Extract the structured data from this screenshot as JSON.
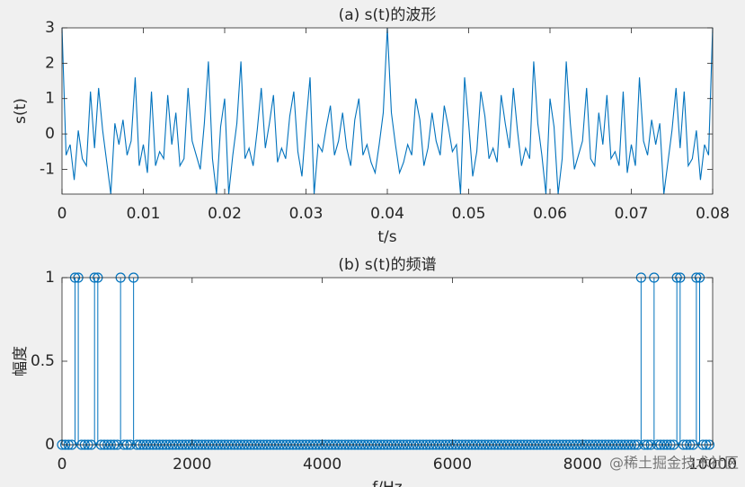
{
  "chart_data": [
    {
      "type": "line",
      "title": "(a) s(t)的波形",
      "x_label": "t/s",
      "y_label": "s(t)",
      "color": "#0072bd",
      "x": [
        0,
        0.0005,
        0.001,
        0.0015,
        0.002,
        0.0025,
        0.003,
        0.0035,
        0.004,
        0.0045,
        0.005,
        0.0055,
        0.006,
        0.0065,
        0.007,
        0.0075,
        0.008,
        0.0085,
        0.009,
        0.0095,
        0.01,
        0.0105,
        0.011,
        0.0115,
        0.012,
        0.0125,
        0.013,
        0.0135,
        0.014,
        0.0145,
        0.015,
        0.0155,
        0.016,
        0.0165,
        0.017,
        0.0175,
        0.018,
        0.0185,
        0.019,
        0.0195,
        0.02,
        0.0205,
        0.021,
        0.0215,
        0.022,
        0.0225,
        0.023,
        0.0235,
        0.024,
        0.0245,
        0.025,
        0.0255,
        0.026,
        0.0265,
        0.027,
        0.0275,
        0.028,
        0.0285,
        0.029,
        0.0295,
        0.03,
        0.0305,
        0.031,
        0.0315,
        0.032,
        0.0325,
        0.033,
        0.0335,
        0.034,
        0.0345,
        0.035,
        0.0355,
        0.036,
        0.0365,
        0.037,
        0.0375,
        0.038,
        0.0385,
        0.039,
        0.0395,
        0.04,
        0.0405,
        0.041,
        0.0415,
        0.042,
        0.0425,
        0.043,
        0.0435,
        0.044,
        0.0445,
        0.045,
        0.0455,
        0.046,
        0.0465,
        0.047,
        0.0475,
        0.048,
        0.0485,
        0.049,
        0.0495,
        0.05,
        0.0505,
        0.051,
        0.0515,
        0.052,
        0.0525,
        0.053,
        0.0535,
        0.054,
        0.0545,
        0.055,
        0.0555,
        0.056,
        0.0565,
        0.057,
        0.0575,
        0.058,
        0.0585,
        0.059,
        0.0595,
        0.06,
        0.0605,
        0.061,
        0.0615,
        0.062,
        0.0625,
        0.063,
        0.0635,
        0.064,
        0.0645,
        0.065,
        0.0655,
        0.066,
        0.0665,
        0.067,
        0.0675,
        0.068,
        0.0685,
        0.069,
        0.0695,
        0.07,
        0.0705,
        0.071,
        0.0715,
        0.072,
        0.0725,
        0.073,
        0.0735,
        0.074,
        0.0745,
        0.075,
        0.0755,
        0.076,
        0.0765,
        0.077,
        0.0775,
        0.078,
        0.0785,
        0.079,
        0.0795,
        0.08
      ],
      "values": [
        3,
        -0.6,
        -0.3,
        -1.3,
        0.1,
        -0.7,
        -0.9,
        1.2,
        -0.4,
        1.3,
        0.1,
        -0.8,
        -1.7,
        0.3,
        -0.3,
        0.4,
        -0.6,
        -0.2,
        1.6,
        -0.9,
        -0.3,
        -1.1,
        1.2,
        -0.9,
        -0.5,
        -0.7,
        1.1,
        -0.3,
        0.6,
        -0.9,
        -0.7,
        1.3,
        -0.2,
        -0.6,
        -1.0,
        0.3,
        2.05,
        -0.7,
        -1.7,
        0.2,
        1.0,
        -1.7,
        -0.6,
        0.3,
        2.05,
        -0.7,
        -0.4,
        -0.9,
        0.1,
        1.3,
        -0.4,
        0.3,
        1.1,
        -0.8,
        -0.4,
        -0.7,
        0.5,
        1.2,
        -0.5,
        -1.2,
        0.3,
        1.6,
        -1.7,
        -0.3,
        -0.5,
        0.2,
        0.8,
        -0.6,
        -0.2,
        0.6,
        -0.4,
        -0.9,
        0.4,
        1.0,
        -0.6,
        -0.3,
        -0.8,
        -1.1,
        -0.3,
        0.6,
        3.0,
        0.6,
        -0.3,
        -1.1,
        -0.8,
        -0.3,
        -0.6,
        1.0,
        0.4,
        -0.9,
        -0.4,
        0.6,
        -0.2,
        -0.6,
        0.8,
        0.2,
        -0.5,
        -0.3,
        -1.7,
        1.6,
        0.3,
        -1.2,
        -0.5,
        1.2,
        0.5,
        -0.7,
        -0.4,
        -0.8,
        1.1,
        0.3,
        -0.4,
        1.3,
        0.1,
        -0.9,
        -0.4,
        -0.7,
        2.05,
        0.3,
        -0.6,
        -1.7,
        1.0,
        0.2,
        -1.7,
        -0.7,
        2.05,
        0.3,
        -1.0,
        -0.6,
        -0.2,
        1.3,
        -0.7,
        -0.9,
        0.6,
        -0.3,
        1.1,
        -0.7,
        -0.5,
        -0.9,
        1.2,
        -1.1,
        -0.3,
        -0.9,
        1.6,
        -0.2,
        -0.6,
        0.4,
        -0.3,
        0.3,
        -1.7,
        -0.8,
        0.1,
        1.3,
        -0.4,
        1.2,
        -0.9,
        -0.7,
        0.1,
        -1.3,
        -0.3,
        -0.6,
        3
      ],
      "xlim": [
        0,
        0.08
      ],
      "xticks": [
        0,
        0.01,
        0.02,
        0.03,
        0.04,
        0.05,
        0.06,
        0.07,
        0.08
      ],
      "ylim": [
        -1.7,
        3
      ],
      "yticks": [
        -1,
        0,
        1,
        2,
        3
      ],
      "grid": false
    },
    {
      "type": "stem",
      "title": "(b) s(t)的频谱",
      "x_label": "f/Hz",
      "y_label": "幅度",
      "color": "#0072bd",
      "x": [
        0,
        50,
        100,
        150,
        200,
        250,
        300,
        350,
        400,
        450,
        500,
        550,
        600,
        650,
        700,
        750,
        800,
        850,
        900,
        950,
        1000,
        1050,
        1100,
        1150,
        1200,
        1250,
        1300,
        1350,
        1400,
        1450,
        1500,
        1550,
        1600,
        1650,
        1700,
        1750,
        1800,
        1850,
        1900,
        1950,
        2000,
        2050,
        2100,
        2150,
        2200,
        2250,
        2300,
        2350,
        2400,
        2450,
        2500,
        2550,
        2600,
        2650,
        2700,
        2750,
        2800,
        2850,
        2900,
        2950,
        3000,
        3050,
        3100,
        3150,
        3200,
        3250,
        3300,
        3350,
        3400,
        3450,
        3500,
        3550,
        3600,
        3650,
        3700,
        3750,
        3800,
        3850,
        3900,
        3950,
        4000,
        4050,
        4100,
        4150,
        4200,
        4250,
        4300,
        4350,
        4400,
        4450,
        4500,
        4550,
        4600,
        4650,
        4700,
        4750,
        4800,
        4850,
        4900,
        4950,
        5000,
        5050,
        5100,
        5150,
        5200,
        5250,
        5300,
        5350,
        5400,
        5450,
        5500,
        5550,
        5600,
        5650,
        5700,
        5750,
        5800,
        5850,
        5900,
        5950,
        6000,
        6050,
        6100,
        6150,
        6200,
        6250,
        6300,
        6350,
        6400,
        6450,
        6500,
        6550,
        6600,
        6650,
        6700,
        6750,
        6800,
        6850,
        6900,
        6950,
        7000,
        7050,
        7100,
        7150,
        7200,
        7250,
        7300,
        7350,
        7400,
        7450,
        7500,
        7550,
        7600,
        7650,
        7700,
        7750,
        7800,
        7850,
        7900,
        7950,
        8000,
        8050,
        8100,
        8150,
        8200,
        8250,
        8300,
        8350,
        8400,
        8450,
        8500,
        8550,
        8600,
        8650,
        8700,
        8750,
        8800,
        8850,
        8900,
        8950,
        9000,
        9050,
        9100,
        9150,
        9200,
        9250,
        9300,
        9350,
        9400,
        9450,
        9500,
        9550,
        9600,
        9650,
        9700,
        9750,
        9800,
        9850,
        9900,
        9950
      ],
      "values": [
        0,
        0,
        0,
        0,
        1,
        1,
        0,
        0,
        0,
        0,
        1,
        1,
        0,
        0,
        0,
        0,
        0,
        0,
        1,
        0,
        0,
        0,
        1,
        0,
        0,
        0,
        0,
        0,
        0,
        0,
        0,
        0,
        0,
        0,
        0,
        0,
        0,
        0,
        0,
        0,
        0,
        0,
        0,
        0,
        0,
        0,
        0,
        0,
        0,
        0,
        0,
        0,
        0,
        0,
        0,
        0,
        0,
        0,
        0,
        0,
        0,
        0,
        0,
        0,
        0,
        0,
        0,
        0,
        0,
        0,
        0,
        0,
        0,
        0,
        0,
        0,
        0,
        0,
        0,
        0,
        0,
        0,
        0,
        0,
        0,
        0,
        0,
        0,
        0,
        0,
        0,
        0,
        0,
        0,
        0,
        0,
        0,
        0,
        0,
        0,
        0,
        0,
        0,
        0,
        0,
        0,
        0,
        0,
        0,
        0,
        0,
        0,
        0,
        0,
        0,
        0,
        0,
        0,
        0,
        0,
        0,
        0,
        0,
        0,
        0,
        0,
        0,
        0,
        0,
        0,
        0,
        0,
        0,
        0,
        0,
        0,
        0,
        0,
        0,
        0,
        0,
        0,
        0,
        0,
        0,
        0,
        0,
        0,
        0,
        0,
        0,
        0,
        0,
        0,
        0,
        0,
        0,
        0,
        0,
        0,
        0,
        0,
        0,
        0,
        0,
        0,
        0,
        0,
        0,
        0,
        0,
        0,
        0,
        0,
        0,
        0,
        0,
        0,
        1,
        0,
        0,
        0,
        1,
        0,
        0,
        0,
        0,
        0,
        0,
        1,
        1,
        0,
        0,
        0,
        0,
        1,
        1,
        0,
        0,
        0
      ],
      "xlim": [
        0,
        10000
      ],
      "xticks": [
        0,
        2000,
        4000,
        6000,
        8000,
        10000
      ],
      "ylim": [
        0,
        1
      ],
      "yticks": [
        0,
        0.5,
        1
      ],
      "grid": false
    }
  ],
  "watermark": "@稀土掘金技术社区"
}
